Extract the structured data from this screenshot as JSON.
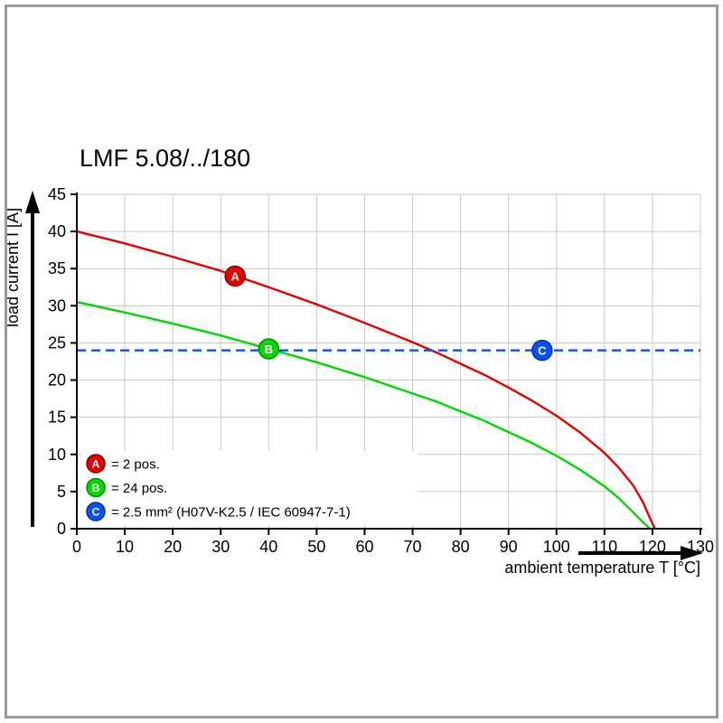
{
  "chart_data": {
    "type": "line",
    "title": "LMF 5.08/../180",
    "xlabel": "ambient temperature T [°C]",
    "ylabel": "load current I [A]",
    "xlim": [
      0,
      130
    ],
    "ylim": [
      0,
      45
    ],
    "xticks": [
      0,
      10,
      20,
      30,
      40,
      50,
      60,
      70,
      80,
      90,
      100,
      110,
      120,
      130
    ],
    "yticks": [
      0,
      5,
      10,
      15,
      20,
      25,
      30,
      35,
      40,
      45
    ],
    "grid": true,
    "grid_color": "#c9c9c9",
    "legend_position": "inside-bottom-left",
    "series": [
      {
        "name": "A",
        "label": "= 2 pos.",
        "color": "#e30000",
        "edge": "#8f0000",
        "style": "solid",
        "points": [
          [
            0,
            40
          ],
          [
            10,
            38.4
          ],
          [
            20,
            36.6
          ],
          [
            30,
            34.7
          ],
          [
            40,
            32.5
          ],
          [
            50,
            30.2
          ],
          [
            60,
            27.7
          ],
          [
            70,
            25.1
          ],
          [
            75,
            23.7
          ],
          [
            80,
            22.2
          ],
          [
            85,
            20.7
          ],
          [
            90,
            19.0
          ],
          [
            95,
            17.2
          ],
          [
            100,
            15.2
          ],
          [
            105,
            12.9
          ],
          [
            110,
            10.2
          ],
          [
            113,
            8.2
          ],
          [
            116,
            5.8
          ],
          [
            118,
            3.6
          ],
          [
            119.5,
            1.4
          ],
          [
            120.5,
            0
          ]
        ],
        "marker": {
          "x": 33,
          "y": 34,
          "label": "A"
        }
      },
      {
        "name": "B",
        "label": "= 24 pos.",
        "color": "#00d800",
        "edge": "#008f00",
        "style": "solid",
        "points": [
          [
            0,
            30.5
          ],
          [
            10,
            29.1
          ],
          [
            20,
            27.6
          ],
          [
            30,
            26.0
          ],
          [
            40,
            24.2
          ],
          [
            50,
            22.4
          ],
          [
            60,
            20.4
          ],
          [
            70,
            18.2
          ],
          [
            75,
            17.1
          ],
          [
            80,
            15.8
          ],
          [
            85,
            14.5
          ],
          [
            90,
            13.0
          ],
          [
            95,
            11.5
          ],
          [
            100,
            9.8
          ],
          [
            105,
            7.9
          ],
          [
            110,
            5.7
          ],
          [
            113,
            4.1
          ],
          [
            116,
            2.2
          ],
          [
            118,
            0.9
          ],
          [
            119.5,
            0
          ]
        ],
        "marker": {
          "x": 40,
          "y": 24.2,
          "label": "B"
        }
      },
      {
        "name": "C",
        "label": "= 2.5 mm² (H07V-K2.5 / IEC 60947-7-1)",
        "color": "#0a52f0",
        "edge": "#0030a0",
        "style": "dashed",
        "points": [
          [
            0,
            24
          ],
          [
            130,
            24
          ]
        ],
        "marker": {
          "x": 97,
          "y": 24,
          "label": "C"
        }
      }
    ]
  }
}
